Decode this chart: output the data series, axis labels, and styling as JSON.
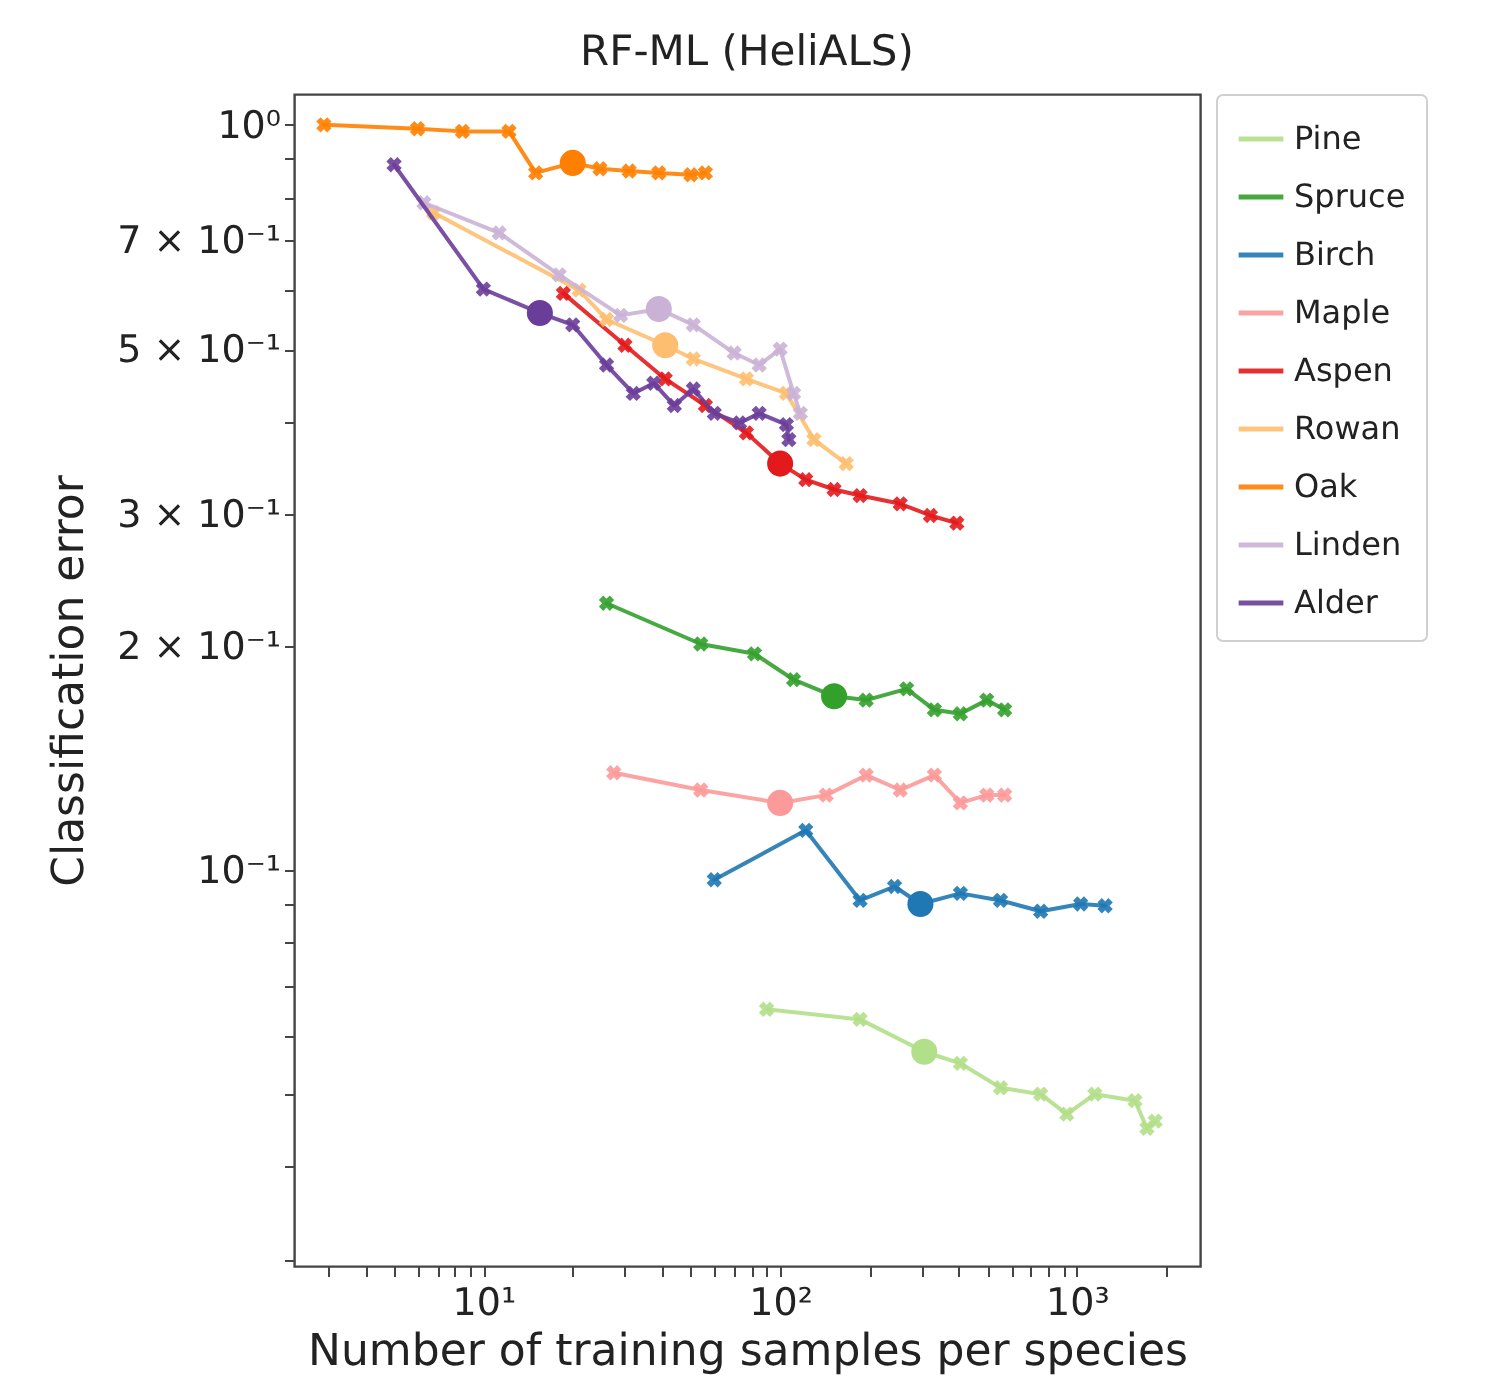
{
  "chart_data": {
    "type": "line",
    "title": "RF-ML (HeliALS)",
    "xlabel": "Number of training samples per species",
    "ylabel": "Classification error",
    "log": "xy",
    "marker": "cross",
    "legend": "right",
    "grid": false,
    "xlim": [
      2.3,
      2600
    ],
    "ylim": [
      0.0294,
      1.1
    ],
    "xticks": [
      {
        "value": 3,
        "label": null
      },
      {
        "value": 4,
        "label": null
      },
      {
        "value": 5,
        "label": null
      },
      {
        "value": 6,
        "label": null
      },
      {
        "value": 7,
        "label": null
      },
      {
        "value": 8,
        "label": null
      },
      {
        "value": 9,
        "label": null
      },
      {
        "value": 10,
        "label": "10¹"
      },
      {
        "value": 20,
        "label": null
      },
      {
        "value": 30,
        "label": null
      },
      {
        "value": 40,
        "label": null
      },
      {
        "value": 50,
        "label": null
      },
      {
        "value": 60,
        "label": null
      },
      {
        "value": 70,
        "label": null
      },
      {
        "value": 80,
        "label": null
      },
      {
        "value": 90,
        "label": null
      },
      {
        "value": 100,
        "label": "10²"
      },
      {
        "value": 200,
        "label": null
      },
      {
        "value": 300,
        "label": null
      },
      {
        "value": 400,
        "label": null
      },
      {
        "value": 500,
        "label": null
      },
      {
        "value": 600,
        "label": null
      },
      {
        "value": 700,
        "label": null
      },
      {
        "value": 800,
        "label": null
      },
      {
        "value": 900,
        "label": null
      },
      {
        "value": 1000,
        "label": "10³"
      },
      {
        "value": 2000,
        "label": null
      }
    ],
    "yticks": [
      {
        "value": 0.03,
        "label": null
      },
      {
        "value": 0.04,
        "label": null
      },
      {
        "value": 0.05,
        "label": null
      },
      {
        "value": 0.06,
        "label": null
      },
      {
        "value": 0.07,
        "label": null
      },
      {
        "value": 0.08,
        "label": null
      },
      {
        "value": 0.09,
        "label": null
      },
      {
        "value": 0.1,
        "label": "10⁻¹"
      },
      {
        "value": 0.2,
        "label": "2 × 10⁻¹"
      },
      {
        "value": 0.3,
        "label": "3 × 10⁻¹"
      },
      {
        "value": 0.4,
        "label": null
      },
      {
        "value": 0.5,
        "label": "5 × 10⁻¹"
      },
      {
        "value": 0.6,
        "label": null
      },
      {
        "value": 0.7,
        "label": "7 × 10⁻¹"
      },
      {
        "value": 0.8,
        "label": null
      },
      {
        "value": 0.9,
        "label": null
      },
      {
        "value": 1,
        "label": "10⁰"
      }
    ],
    "series": [
      {
        "name": "Pine",
        "color": "#b2df8a",
        "x": [
          90,
          186,
          306,
          405,
          553,
          755,
          925,
          1150,
          1570,
          1722,
          1836
        ],
        "values": [
          0.065,
          0.063,
          0.057,
          0.055,
          0.051,
          0.05,
          0.047,
          0.05,
          0.049,
          0.045,
          0.046
        ]
      },
      {
        "name": "Spruce",
        "color": "#33a02c",
        "x": [
          26,
          54,
          82,
          111,
          152,
          195,
          267,
          331,
          405,
          497,
          571
        ],
        "values": [
          0.228,
          0.201,
          0.195,
          0.18,
          0.171,
          0.169,
          0.175,
          0.164,
          0.162,
          0.169,
          0.164
        ]
      },
      {
        "name": "Birch",
        "color": "#1f78b4",
        "x": [
          60,
          122,
          186,
          243,
          297,
          405,
          553,
          755,
          1030,
          1245
        ],
        "values": [
          0.097,
          0.113,
          0.091,
          0.095,
          0.09,
          0.093,
          0.091,
          0.088,
          0.09,
          0.0895
        ]
      },
      {
        "name": "Maple",
        "color": "#fb9a99",
        "x": [
          27.5,
          54,
          100,
          143,
          195,
          254,
          331,
          405,
          497,
          571
        ],
        "values": [
          0.135,
          0.128,
          0.123,
          0.126,
          0.134,
          0.128,
          0.134,
          0.123,
          0.126,
          0.126
        ]
      },
      {
        "name": "Aspen",
        "color": "#e31a1c",
        "x": [
          18.6,
          30,
          41,
          56,
          77,
          100,
          122,
          152,
          186,
          254,
          321,
          394
        ],
        "values": [
          0.594,
          0.506,
          0.456,
          0.42,
          0.386,
          0.351,
          0.334,
          0.324,
          0.318,
          0.31,
          0.299,
          0.292
        ]
      },
      {
        "name": "Rowan",
        "color": "#fdbf6f",
        "x": [
          6.8,
          21,
          26,
          41,
          51,
          77,
          105,
          130,
          167
        ],
        "values": [
          0.762,
          0.6,
          0.548,
          0.506,
          0.485,
          0.456,
          0.436,
          0.378,
          0.351
        ]
      },
      {
        "name": "Oak",
        "color": "#ff7f00",
        "x": [
          2.9,
          6,
          8.5,
          12.2,
          15,
          20,
          24.7,
          31,
          39,
          50,
          56
        ],
        "values": [
          1.0,
          0.988,
          0.98,
          0.98,
          0.862,
          0.889,
          0.873,
          0.867,
          0.862,
          0.857,
          0.862
        ]
      },
      {
        "name": "Linden",
        "color": "#cab2d6",
        "x": [
          6.3,
          11.3,
          18,
          29,
          39,
          51,
          70,
          85,
          100,
          111,
          117
        ],
        "values": [
          0.786,
          0.716,
          0.629,
          0.555,
          0.566,
          0.539,
          0.494,
          0.476,
          0.5,
          0.436,
          0.41
        ]
      },
      {
        "name": "Alder",
        "color": "#6a3d9a",
        "x": [
          5,
          10,
          15.5,
          20,
          26,
          32,
          37.5,
          44,
          51,
          60,
          73,
          85,
          105,
          107
        ],
        "values": [
          0.884,
          0.602,
          0.559,
          0.539,
          0.476,
          0.436,
          0.45,
          0.42,
          0.442,
          0.41,
          0.398,
          0.41,
          0.396,
          0.378
        ]
      },
      {
        "type": "scatter",
        "marker": "circle",
        "color": "#b2df8a",
        "x": [
          306
        ],
        "values": [
          0.057
        ]
      },
      {
        "type": "scatter",
        "marker": "circle",
        "color": "#33a02c",
        "x": [
          152
        ],
        "values": [
          0.171
        ]
      },
      {
        "type": "scatter",
        "marker": "circle",
        "color": "#1f78b4",
        "x": [
          297
        ],
        "values": [
          0.09
        ]
      },
      {
        "type": "scatter",
        "marker": "circle",
        "color": "#fb9a99",
        "x": [
          100
        ],
        "values": [
          0.123
        ]
      },
      {
        "type": "scatter",
        "marker": "circle",
        "color": "#e31a1c",
        "x": [
          100
        ],
        "values": [
          0.351
        ]
      },
      {
        "type": "scatter",
        "marker": "circle",
        "color": "#fdbf6f",
        "x": [
          41
        ],
        "values": [
          0.506
        ]
      },
      {
        "type": "scatter",
        "marker": "circle",
        "color": "#ff7f00",
        "x": [
          20
        ],
        "values": [
          0.889
        ]
      },
      {
        "type": "scatter",
        "marker": "circle",
        "color": "#cab2d6",
        "x": [
          39
        ],
        "values": [
          0.566
        ]
      },
      {
        "type": "scatter",
        "marker": "circle",
        "color": "#6a3d9a",
        "x": [
          15.5
        ],
        "values": [
          0.559
        ]
      }
    ]
  }
}
